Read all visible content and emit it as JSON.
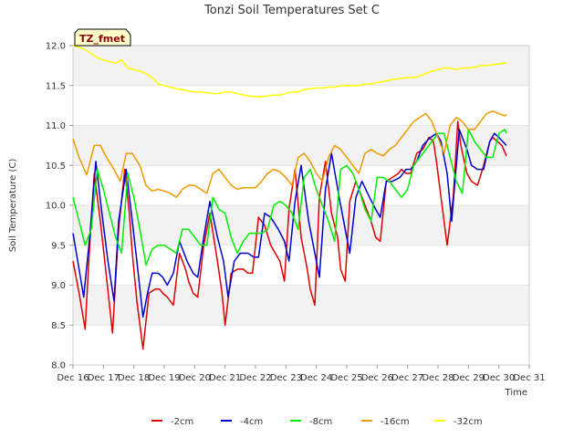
{
  "chart_data": {
    "type": "line",
    "title": "Tonzi Soil Temperatures Set C",
    "xlabel": "Time",
    "ylabel": "Soil Temperature (C)",
    "xlim": [
      16,
      31
    ],
    "ylim": [
      8.0,
      12.0
    ],
    "grid": "horizontal bands",
    "legend_position": "bottom",
    "x_ticks": [
      16,
      17,
      18,
      19,
      20,
      21,
      22,
      23,
      24,
      25,
      26,
      27,
      28,
      29,
      30,
      31
    ],
    "x_tick_labels": [
      "Dec 16",
      "Dec 17",
      "Dec 18",
      "Dec 19",
      "Dec 20",
      "Dec 21",
      "Dec 22",
      "Dec 23",
      "Dec 24",
      "Dec 25",
      "Dec 26",
      "Dec 27",
      "Dec 28",
      "Dec 29",
      "Dec 30",
      "Dec 31"
    ],
    "y_ticks": [
      8.0,
      8.5,
      9.0,
      9.5,
      10.0,
      10.5,
      11.0,
      11.5,
      12.0
    ],
    "y_tick_labels": [
      "8.0",
      "8.5",
      "9.0",
      "9.5",
      "10.0",
      "10.5",
      "11.0",
      "11.5",
      "12.0"
    ],
    "annotation": "TZ_fmet",
    "series": [
      {
        "name": "-2cm",
        "color": "#dd0000",
        "x": [
          16.0,
          16.2,
          16.4,
          16.55,
          16.7,
          16.9,
          17.1,
          17.3,
          17.5,
          17.7,
          17.85,
          17.95,
          18.1,
          18.3,
          18.5,
          18.7,
          18.85,
          18.95,
          19.1,
          19.3,
          19.5,
          19.7,
          19.8,
          19.95,
          20.1,
          20.3,
          20.5,
          20.75,
          20.9,
          21.0,
          21.2,
          21.4,
          21.6,
          21.75,
          21.9,
          22.1,
          22.3,
          22.5,
          22.8,
          22.95,
          23.1,
          23.3,
          23.5,
          23.7,
          23.8,
          23.95,
          24.1,
          24.3,
          24.5,
          24.7,
          24.8,
          24.95,
          25.1,
          25.3,
          25.5,
          25.7,
          25.8,
          25.95,
          26.1,
          26.3,
          26.5,
          26.7,
          26.8,
          26.95,
          27.1,
          27.3,
          27.5,
          27.7,
          27.85,
          27.95,
          28.1,
          28.3,
          28.5,
          28.65,
          28.75,
          28.95,
          29.1,
          29.3,
          29.5,
          29.7,
          29.8,
          29.95,
          30.1,
          30.25
        ],
        "values": [
          9.3,
          8.9,
          8.45,
          9.5,
          10.4,
          9.8,
          9.1,
          8.4,
          9.7,
          10.45,
          9.9,
          9.4,
          8.8,
          8.2,
          8.9,
          8.95,
          8.95,
          8.9,
          8.85,
          8.75,
          9.4,
          9.2,
          9.05,
          8.9,
          8.85,
          9.5,
          9.9,
          9.3,
          8.9,
          8.5,
          9.15,
          9.2,
          9.2,
          9.15,
          9.15,
          9.85,
          9.75,
          9.5,
          9.3,
          9.05,
          9.95,
          10.45,
          9.6,
          9.2,
          8.95,
          8.75,
          10.1,
          10.55,
          9.9,
          9.6,
          9.2,
          9.05,
          10.05,
          10.3,
          10.1,
          9.9,
          9.8,
          9.6,
          9.55,
          10.3,
          10.35,
          10.4,
          10.45,
          10.4,
          10.4,
          10.65,
          10.7,
          10.85,
          10.8,
          10.55,
          10.1,
          9.5,
          10.1,
          11.05,
          10.75,
          10.4,
          10.3,
          10.25,
          10.5,
          10.8,
          10.85,
          10.8,
          10.75,
          10.62
        ]
      },
      {
        "name": "-4cm",
        "color": "#0000cc",
        "x": [
          16.0,
          16.2,
          16.35,
          16.55,
          16.75,
          16.95,
          17.15,
          17.35,
          17.5,
          17.75,
          17.95,
          18.1,
          18.3,
          18.45,
          18.6,
          18.8,
          18.95,
          19.1,
          19.3,
          19.5,
          19.75,
          19.95,
          20.1,
          20.3,
          20.5,
          20.75,
          20.95,
          21.1,
          21.3,
          21.5,
          21.75,
          21.95,
          22.1,
          22.3,
          22.5,
          22.75,
          22.95,
          23.1,
          23.3,
          23.5,
          23.75,
          23.95,
          24.1,
          24.3,
          24.5,
          24.75,
          24.95,
          25.1,
          25.3,
          25.5,
          25.75,
          25.95,
          26.1,
          26.3,
          26.5,
          26.75,
          26.95,
          27.1,
          27.3,
          27.5,
          27.75,
          27.95,
          28.1,
          28.3,
          28.45,
          28.7,
          28.95,
          29.1,
          29.3,
          29.5,
          29.7,
          29.85,
          30.0,
          30.25
        ],
        "values": [
          9.65,
          9.2,
          8.85,
          9.6,
          10.55,
          9.9,
          9.3,
          8.8,
          9.8,
          10.45,
          9.8,
          9.3,
          8.6,
          8.9,
          9.15,
          9.15,
          9.1,
          9.0,
          9.15,
          9.55,
          9.3,
          9.15,
          9.1,
          9.6,
          10.05,
          9.6,
          9.3,
          8.85,
          9.3,
          9.4,
          9.4,
          9.35,
          9.35,
          9.9,
          9.85,
          9.7,
          9.55,
          9.3,
          10.05,
          10.5,
          9.8,
          9.4,
          9.1,
          10.2,
          10.65,
          10.1,
          9.7,
          9.4,
          10.1,
          10.3,
          10.1,
          9.95,
          9.85,
          10.3,
          10.3,
          10.35,
          10.45,
          10.45,
          10.55,
          10.75,
          10.85,
          10.9,
          10.8,
          10.4,
          9.8,
          10.95,
          10.7,
          10.5,
          10.45,
          10.45,
          10.8,
          10.9,
          10.85,
          10.75
        ]
      },
      {
        "name": "-8cm",
        "color": "#00ee00",
        "x": [
          16.0,
          16.2,
          16.4,
          16.6,
          16.8,
          17.0,
          17.2,
          17.4,
          17.6,
          17.8,
          18.0,
          18.2,
          18.4,
          18.6,
          18.8,
          19.0,
          19.2,
          19.4,
          19.6,
          19.8,
          20.0,
          20.2,
          20.4,
          20.6,
          20.8,
          21.0,
          21.2,
          21.4,
          21.6,
          21.8,
          22.0,
          22.2,
          22.4,
          22.6,
          22.8,
          23.0,
          23.2,
          23.4,
          23.6,
          23.8,
          24.0,
          24.2,
          24.4,
          24.6,
          24.8,
          25.0,
          25.2,
          25.4,
          25.6,
          25.8,
          26.0,
          26.2,
          26.4,
          26.6,
          26.8,
          27.0,
          27.2,
          27.4,
          27.6,
          27.8,
          28.0,
          28.2,
          28.4,
          28.6,
          28.8,
          29.0,
          29.2,
          29.4,
          29.6,
          29.8,
          30.0,
          30.2,
          30.25
        ],
        "values": [
          10.1,
          9.8,
          9.5,
          9.7,
          10.45,
          10.2,
          9.9,
          9.6,
          9.4,
          10.4,
          10.1,
          9.7,
          9.25,
          9.45,
          9.5,
          9.5,
          9.45,
          9.4,
          9.7,
          9.7,
          9.6,
          9.5,
          9.5,
          10.1,
          9.95,
          9.9,
          9.6,
          9.4,
          9.55,
          9.65,
          9.65,
          9.65,
          9.7,
          10.0,
          10.05,
          10.0,
          9.9,
          9.7,
          10.35,
          10.45,
          10.2,
          10.0,
          9.8,
          9.55,
          10.45,
          10.5,
          10.4,
          10.2,
          9.95,
          9.8,
          10.35,
          10.35,
          10.3,
          10.2,
          10.1,
          10.2,
          10.5,
          10.6,
          10.7,
          10.8,
          10.9,
          10.9,
          10.6,
          10.3,
          10.15,
          10.95,
          10.8,
          10.7,
          10.6,
          10.6,
          10.9,
          10.95,
          10.9
        ]
      },
      {
        "name": "-16cm",
        "color": "#ee9900",
        "x": [
          16.0,
          16.2,
          16.45,
          16.7,
          16.9,
          17.1,
          17.35,
          17.55,
          17.75,
          17.95,
          18.2,
          18.4,
          18.6,
          18.8,
          19.0,
          19.2,
          19.4,
          19.6,
          19.8,
          20.0,
          20.2,
          20.4,
          20.6,
          20.8,
          21.0,
          21.2,
          21.4,
          21.6,
          21.8,
          22.0,
          22.2,
          22.4,
          22.6,
          22.8,
          23.0,
          23.2,
          23.4,
          23.6,
          23.8,
          24.0,
          24.2,
          24.4,
          24.6,
          24.8,
          25.0,
          25.2,
          25.4,
          25.6,
          25.8,
          26.0,
          26.2,
          26.4,
          26.6,
          26.8,
          27.0,
          27.2,
          27.4,
          27.6,
          27.8,
          28.0,
          28.2,
          28.4,
          28.6,
          28.8,
          29.0,
          29.2,
          29.4,
          29.6,
          29.8,
          30.0,
          30.2,
          30.25
        ],
        "values": [
          10.83,
          10.6,
          10.38,
          10.75,
          10.75,
          10.6,
          10.45,
          10.3,
          10.65,
          10.65,
          10.5,
          10.25,
          10.18,
          10.2,
          10.18,
          10.15,
          10.1,
          10.2,
          10.25,
          10.25,
          10.2,
          10.15,
          10.4,
          10.45,
          10.35,
          10.25,
          10.2,
          10.22,
          10.22,
          10.22,
          10.3,
          10.4,
          10.45,
          10.42,
          10.35,
          10.25,
          10.6,
          10.65,
          10.55,
          10.4,
          10.3,
          10.6,
          10.75,
          10.7,
          10.6,
          10.5,
          10.4,
          10.65,
          10.7,
          10.65,
          10.62,
          10.7,
          10.75,
          10.85,
          10.95,
          11.05,
          11.1,
          11.15,
          11.05,
          10.85,
          10.65,
          11.0,
          11.1,
          11.05,
          10.95,
          10.95,
          11.05,
          11.15,
          11.18,
          11.15,
          11.12,
          11.14
        ]
      },
      {
        "name": "-32cm",
        "color": "#ffff00",
        "x": [
          16.0,
          16.2,
          16.4,
          16.6,
          16.8,
          17.0,
          17.2,
          17.4,
          17.6,
          17.8,
          18.0,
          18.2,
          18.4,
          18.6,
          18.8,
          19.0,
          19.2,
          19.4,
          19.6,
          19.8,
          20.0,
          20.2,
          20.4,
          20.6,
          20.8,
          21.0,
          21.2,
          21.4,
          21.6,
          21.8,
          22.0,
          22.2,
          22.4,
          22.6,
          22.8,
          23.0,
          23.2,
          23.4,
          23.6,
          23.8,
          24.0,
          24.2,
          24.4,
          24.6,
          24.8,
          25.0,
          25.2,
          25.4,
          25.6,
          25.8,
          26.0,
          26.2,
          26.4,
          26.6,
          26.8,
          27.0,
          27.2,
          27.4,
          27.6,
          27.8,
          28.0,
          28.2,
          28.4,
          28.6,
          28.8,
          29.0,
          29.2,
          29.4,
          29.6,
          29.8,
          30.0,
          30.2,
          30.25
        ],
        "values": [
          12.0,
          11.98,
          11.95,
          11.9,
          11.85,
          11.82,
          11.8,
          11.78,
          11.82,
          11.72,
          11.7,
          11.68,
          11.65,
          11.6,
          11.52,
          11.5,
          11.48,
          11.46,
          11.45,
          11.43,
          11.42,
          11.42,
          11.41,
          11.4,
          11.4,
          11.42,
          11.42,
          11.4,
          11.38,
          11.37,
          11.36,
          11.36,
          11.37,
          11.38,
          11.38,
          11.4,
          11.42,
          11.42,
          11.45,
          11.46,
          11.47,
          11.47,
          11.48,
          11.48,
          11.5,
          11.5,
          11.5,
          11.5,
          11.52,
          11.52,
          11.54,
          11.55,
          11.57,
          11.58,
          11.59,
          11.6,
          11.6,
          11.62,
          11.65,
          11.68,
          11.7,
          11.72,
          11.72,
          11.7,
          11.72,
          11.72,
          11.73,
          11.75,
          11.75,
          11.76,
          11.77,
          11.78,
          11.79
        ]
      }
    ]
  }
}
